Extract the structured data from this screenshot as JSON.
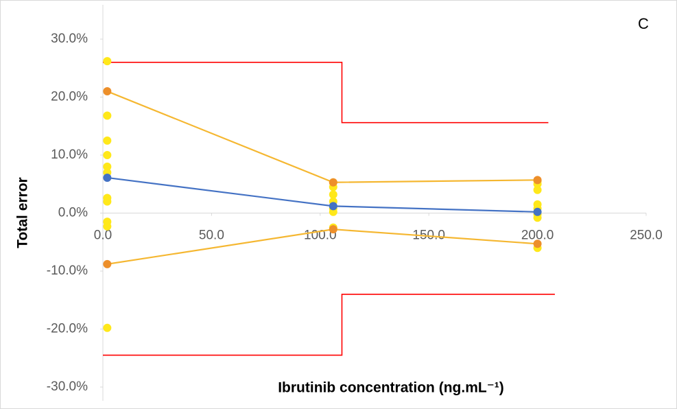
{
  "chart_data": {
    "type": "line",
    "annotation": "C",
    "x_label": "Ibrutinib concentration (ng.mL⁻¹)",
    "y_label": "Total error",
    "xlim": [
      0,
      250
    ],
    "ylim": [
      -30,
      30
    ],
    "xticks": [
      {
        "value": 0,
        "label": "0.0"
      },
      {
        "value": 50,
        "label": "50.0"
      },
      {
        "value": 100,
        "label": "100.0"
      },
      {
        "value": 150,
        "label": "150.0"
      },
      {
        "value": 200,
        "label": "200.0"
      },
      {
        "value": 250,
        "label": "250.0"
      }
    ],
    "yticks": [
      {
        "value": 30,
        "label": "30.0%"
      },
      {
        "value": 20,
        "label": "20.0%"
      },
      {
        "value": 10,
        "label": "10.0%"
      },
      {
        "value": 0,
        "label": "0.0%"
      },
      {
        "value": -10,
        "label": "-10.0%"
      },
      {
        "value": -20,
        "label": "-20.0%"
      },
      {
        "value": -30,
        "label": "-30.0%"
      }
    ],
    "series": [
      {
        "mode": "lines",
        "color": "#ff0000",
        "x": [
          0,
          110,
          110,
          205
        ],
        "values": [
          26,
          26,
          15.6,
          15.6
        ]
      },
      {
        "mode": "lines",
        "color": "#ff0000",
        "x": [
          0,
          110,
          110,
          208
        ],
        "values": [
          -24.5,
          -24.5,
          -14,
          -14
        ]
      },
      {
        "mode": "markers",
        "color": "#ffe81a",
        "x": [
          2,
          2,
          2,
          2,
          2,
          2,
          2,
          2,
          2,
          2,
          2,
          106,
          106,
          106,
          106,
          106,
          106,
          106,
          200,
          200,
          200,
          200,
          200,
          200,
          200,
          200
        ],
        "values": [
          26.2,
          16.8,
          12.5,
          10,
          8,
          7,
          2.6,
          2,
          -1.5,
          -2.3,
          -19.8,
          5.3,
          4.5,
          3.2,
          2,
          0.8,
          0.2,
          -2.5,
          5.5,
          5,
          4,
          1.5,
          0.8,
          -0.2,
          -0.8,
          -6
        ]
      },
      {
        "mode": "lines+markers",
        "color": "#4472c4",
        "marker_color": "#4472c4",
        "x": [
          2,
          106,
          200
        ],
        "values": [
          6.1,
          1.2,
          0.2
        ]
      },
      {
        "mode": "lines+markers",
        "color": "#f5b731",
        "marker_color": "#ed8f2a",
        "x": [
          2,
          106,
          200
        ],
        "values": [
          21,
          5.3,
          5.7
        ]
      },
      {
        "mode": "lines+markers",
        "color": "#f5b731",
        "marker_color": "#ed8f2a",
        "x": [
          2,
          106,
          200
        ],
        "values": [
          -8.8,
          -2.8,
          -5.3
        ]
      }
    ]
  }
}
